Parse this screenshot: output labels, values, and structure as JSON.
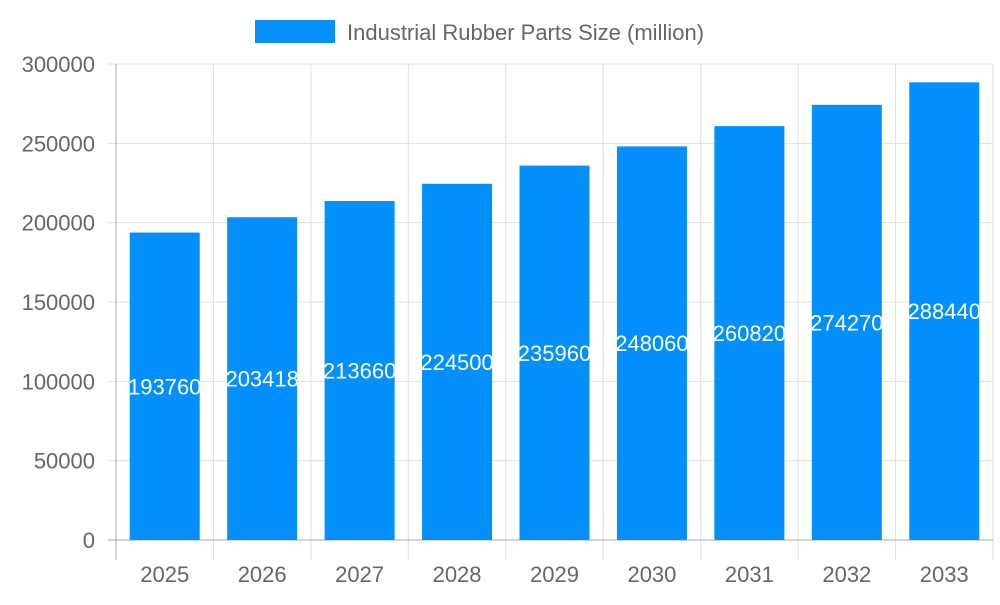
{
  "chart_data": {
    "type": "bar",
    "categories": [
      "2025",
      "2026",
      "2027",
      "2028",
      "2029",
      "2030",
      "2031",
      "2032",
      "2033"
    ],
    "series": [
      {
        "name": "Industrial Rubber Parts Size (million)",
        "values": [
          193760,
          203418,
          213660,
          224500,
          235960,
          248060,
          260820,
          274270,
          288440
        ]
      }
    ],
    "ylim": [
      0,
      300000
    ],
    "yticks": [
      0,
      50000,
      100000,
      150000,
      200000,
      250000,
      300000
    ],
    "grid": true,
    "legend": "top",
    "colors": {
      "bar": "#038ffc",
      "label": "#ffffff",
      "text": "#666666"
    }
  }
}
